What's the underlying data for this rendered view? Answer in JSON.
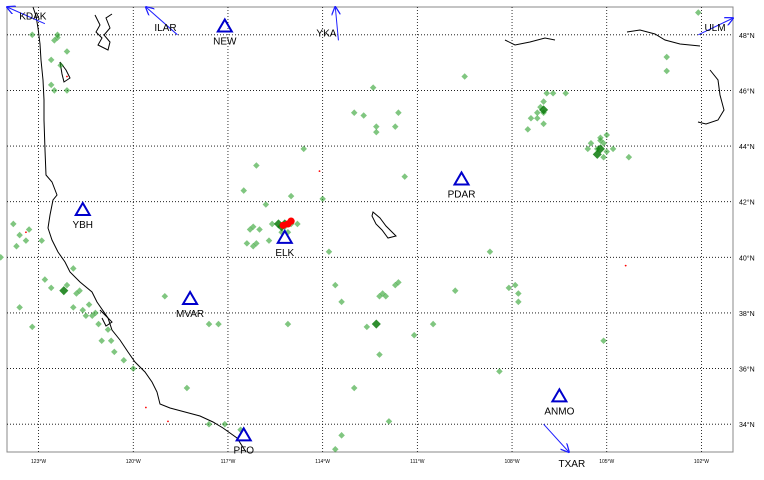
{
  "map": {
    "lat_min": 33.0,
    "lat_max": 49.0,
    "lon_min": -124.0,
    "lon_max": -101.0,
    "grid": "dotted",
    "colors": {
      "frame": "#888888",
      "grid": "#000000",
      "coast": "#000000",
      "station": "#0000cc",
      "arrow": "#1f1fff",
      "event": "#2ca02c",
      "event_dark": "#0a7a0a",
      "source": "#ff0000"
    },
    "lat_ticks": [
      {
        "value": 48,
        "label": "48°N"
      },
      {
        "value": 46,
        "label": "46°N"
      },
      {
        "value": 44,
        "label": "44°N"
      },
      {
        "value": 42,
        "label": "42°N"
      },
      {
        "value": 40,
        "label": "40°N"
      },
      {
        "value": 38,
        "label": "38°N"
      },
      {
        "value": 36,
        "label": "36°N"
      },
      {
        "value": 34,
        "label": "34°N"
      }
    ],
    "lon_ticks": [
      {
        "value": -123,
        "label": "123°W"
      },
      {
        "value": -120,
        "label": "120°W"
      },
      {
        "value": -117,
        "label": "117°W"
      },
      {
        "value": -114,
        "label": "114°W"
      },
      {
        "value": -111,
        "label": "111°W"
      },
      {
        "value": -108,
        "label": "108°W"
      },
      {
        "value": -105,
        "label": "105°W"
      },
      {
        "value": -102,
        "label": "102°W"
      }
    ],
    "stations": [
      {
        "code": "YBH",
        "lon": -121.6,
        "lat": 41.7
      },
      {
        "code": "ELK",
        "lon": -115.2,
        "lat": 40.7
      },
      {
        "code": "NEW",
        "lon": -117.1,
        "lat": 48.3
      },
      {
        "code": "PDAR",
        "lon": -109.6,
        "lat": 42.8
      },
      {
        "code": "MVAR",
        "lon": -118.2,
        "lat": 38.5
      },
      {
        "code": "ANMO",
        "lon": -106.5,
        "lat": 35.0
      },
      {
        "code": "PFO",
        "lon": -116.5,
        "lat": 33.6
      }
    ],
    "offmap_stations": [
      {
        "code": "KDAK",
        "tip": [
          -124.0,
          49.0
        ],
        "tail": [
          -122.8,
          48.4
        ]
      },
      {
        "code": "ILAR",
        "tip": [
          -119.6,
          49.0
        ],
        "tail": [
          -118.6,
          48.0
        ]
      },
      {
        "code": "YKA",
        "tip": [
          -113.6,
          49.0
        ],
        "tail": [
          -113.5,
          47.8
        ]
      },
      {
        "code": "ULM",
        "tip": [
          -101.0,
          48.6
        ],
        "tail": [
          -102.1,
          48.0
        ]
      },
      {
        "code": "TXAR",
        "tip": [
          -106.2,
          33.0
        ],
        "tail": [
          -107.0,
          34.0
        ]
      }
    ],
    "events": [
      [
        -123.2,
        48.0
      ],
      [
        -122.4,
        48.0
      ],
      [
        -122.4,
        47.9
      ],
      [
        -122.5,
        47.8
      ],
      [
        -122.1,
        47.4
      ],
      [
        -122.6,
        47.1
      ],
      [
        -122.3,
        46.9
      ],
      [
        -122.5,
        46.0
      ],
      [
        -122.1,
        46.0
      ],
      [
        -122.6,
        46.2
      ],
      [
        -112.4,
        46.1
      ],
      [
        -113.0,
        45.2
      ],
      [
        -112.3,
        44.5
      ],
      [
        -112.3,
        44.7
      ],
      [
        -111.6,
        45.2
      ],
      [
        -111.7,
        44.7
      ],
      [
        -112.7,
        45.1
      ],
      [
        -116.1,
        43.3
      ],
      [
        -116.5,
        42.4
      ],
      [
        -115.8,
        41.9
      ],
      [
        -111.4,
        42.9
      ],
      [
        -114.6,
        43.9
      ],
      [
        -115.0,
        42.2
      ],
      [
        -114.0,
        42.1
      ],
      [
        -109.5,
        46.5
      ],
      [
        -106.9,
        45.9
      ],
      [
        -106.7,
        45.9
      ],
      [
        -106.3,
        45.9
      ],
      [
        -107.0,
        45.6
      ],
      [
        -107.1,
        45.4
      ],
      [
        -107.2,
        45.2
      ],
      [
        -107.2,
        45.0
      ],
      [
        -107.4,
        45.0
      ],
      [
        -107.0,
        45.2
      ],
      [
        -107.5,
        44.6
      ],
      [
        -107.0,
        44.8
      ],
      [
        -105.2,
        44.3
      ],
      [
        -105.5,
        44.1
      ],
      [
        -105.3,
        43.9
      ],
      [
        -105.0,
        43.8
      ],
      [
        -105.1,
        43.6
      ],
      [
        -104.8,
        43.9
      ],
      [
        -105.2,
        44.2
      ],
      [
        -105.6,
        43.9
      ],
      [
        -105.1,
        44.1
      ],
      [
        -105.0,
        44.4
      ],
      [
        -104.3,
        43.6
      ],
      [
        -103.1,
        47.2
      ],
      [
        -103.1,
        46.7
      ],
      [
        -102.1,
        48.8
      ],
      [
        -116.2,
        40.4
      ],
      [
        -116.4,
        40.5
      ],
      [
        -116.1,
        40.5
      ],
      [
        -115.7,
        40.6
      ],
      [
        -115.6,
        41.2
      ],
      [
        -115.2,
        41.1
      ],
      [
        -115.0,
        41.2
      ],
      [
        -114.8,
        41.2
      ],
      [
        -115.3,
        40.9
      ],
      [
        -115.1,
        40.9
      ],
      [
        -116.0,
        41.0
      ],
      [
        -116.2,
        41.1
      ],
      [
        -116.3,
        41.0
      ],
      [
        -113.8,
        40.2
      ],
      [
        -113.6,
        39.0
      ],
      [
        -113.4,
        38.4
      ],
      [
        -112.1,
        38.7
      ],
      [
        -112.0,
        38.6
      ],
      [
        -112.2,
        38.6
      ],
      [
        -111.7,
        39.0
      ],
      [
        -111.6,
        39.1
      ],
      [
        -109.8,
        38.8
      ],
      [
        -108.7,
        40.2
      ],
      [
        -108.1,
        38.9
      ],
      [
        -107.9,
        39.0
      ],
      [
        -107.8,
        38.7
      ],
      [
        -107.8,
        38.4
      ],
      [
        -105.1,
        37.0
      ],
      [
        -108.4,
        35.9
      ],
      [
        -110.5,
        37.6
      ],
      [
        -111.1,
        37.2
      ],
      [
        -112.6,
        37.5
      ],
      [
        -112.2,
        36.5
      ],
      [
        -113.0,
        35.3
      ],
      [
        -111.9,
        34.1
      ],
      [
        -113.4,
        33.6
      ],
      [
        -113.6,
        33.1
      ],
      [
        -115.1,
        37.6
      ],
      [
        -117.3,
        37.6
      ],
      [
        -117.6,
        37.6
      ],
      [
        -119.0,
        38.6
      ],
      [
        -118.3,
        35.3
      ],
      [
        -117.6,
        34.0
      ],
      [
        -117.1,
        34.0
      ],
      [
        -116.6,
        33.8
      ],
      [
        -121.9,
        39.6
      ],
      [
        -122.1,
        39.0
      ],
      [
        -121.8,
        38.7
      ],
      [
        -121.4,
        38.3
      ],
      [
        -121.2,
        38.0
      ],
      [
        -121.1,
        37.6
      ],
      [
        -121.3,
        37.9
      ],
      [
        -120.8,
        37.4
      ],
      [
        -120.7,
        37.0
      ],
      [
        -120.6,
        36.6
      ],
      [
        -120.3,
        36.3
      ],
      [
        -120.0,
        36.0
      ],
      [
        -121.0,
        37.0
      ],
      [
        -123.8,
        41.2
      ],
      [
        -123.6,
        40.8
      ],
      [
        -123.4,
        40.6
      ],
      [
        -123.7,
        40.4
      ],
      [
        -123.3,
        41.0
      ],
      [
        -124.2,
        40.0
      ],
      [
        -123.6,
        38.2
      ],
      [
        -122.9,
        40.6
      ],
      [
        -122.8,
        39.2
      ],
      [
        -122.6,
        38.9
      ],
      [
        -121.7,
        38.8
      ],
      [
        -121.9,
        38.2
      ],
      [
        -121.5,
        37.9
      ],
      [
        -121.6,
        38.1
      ],
      [
        -123.2,
        37.5
      ]
    ],
    "event_clusters": [
      [
        -115.3,
        41.1
      ],
      [
        -115.2,
        41.2
      ],
      [
        -115.4,
        41.2
      ],
      [
        -107.0,
        45.3
      ],
      [
        -105.2,
        43.9
      ],
      [
        -105.3,
        43.7
      ],
      [
        -122.2,
        38.8
      ],
      [
        -112.3,
        37.6
      ]
    ],
    "source_marks": [
      [
        -115.1,
        41.2
      ],
      [
        -115.25,
        41.15
      ],
      [
        -115.0,
        41.3
      ],
      [
        -122.1,
        46.5
      ],
      [
        -123.4,
        40.9
      ],
      [
        -104.4,
        39.7
      ],
      [
        -114.1,
        43.1
      ],
      [
        -118.9,
        34.1
      ],
      [
        -119.6,
        34.6
      ]
    ]
  }
}
